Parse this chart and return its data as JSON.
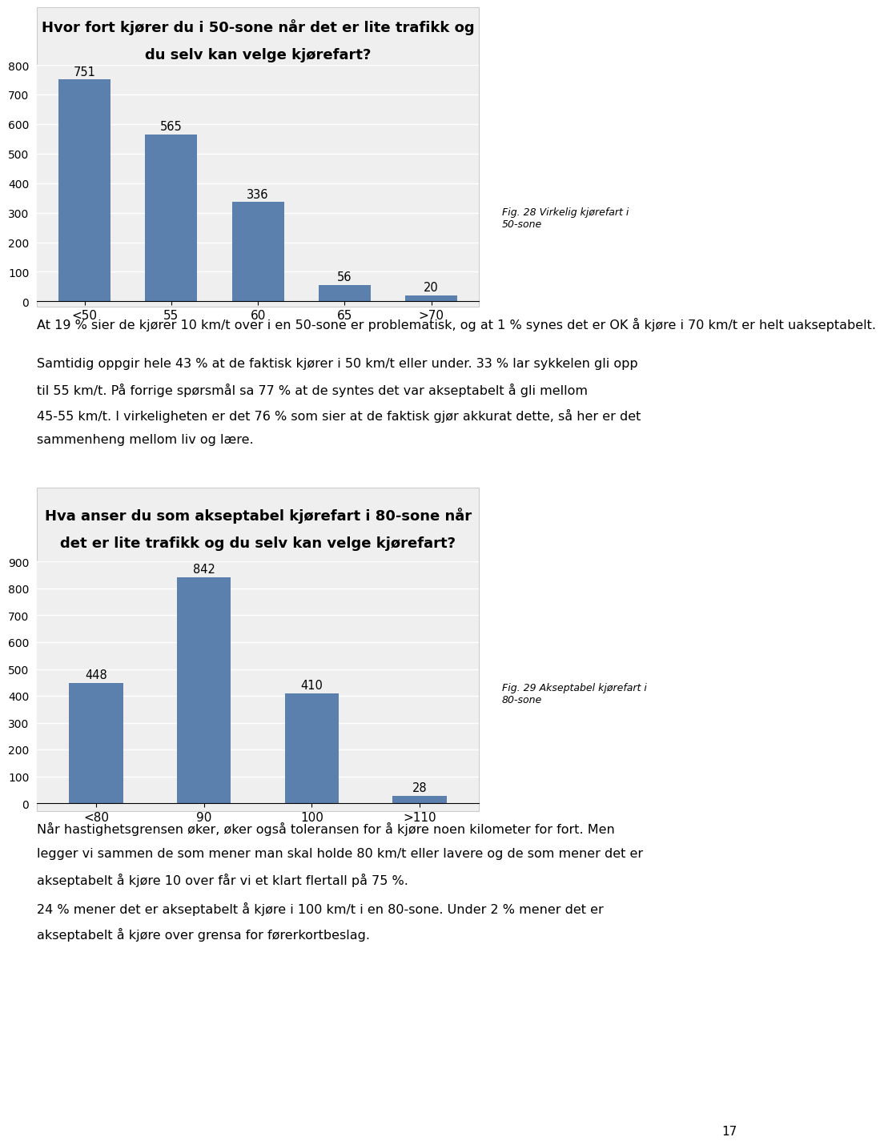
{
  "chart1": {
    "title_line1": "Hvor fort kjører du i 50-sone når det er lite trafikk og",
    "title_line2": "du selv kan velge kjørefart?",
    "categories": [
      "<50",
      "55",
      "60",
      "65",
      ">70"
    ],
    "values": [
      751,
      565,
      336,
      56,
      20
    ],
    "bar_color": "#5b80ae",
    "ylim": [
      0,
      800
    ],
    "yticks": [
      0,
      100,
      200,
      300,
      400,
      500,
      600,
      700,
      800
    ],
    "fig_caption": "Fig. 28 Virkelig kjørefart i\n50-sone"
  },
  "chart2": {
    "title_line1": "Hva anser du som akseptabel kjørefart i 80-sone når",
    "title_line2": "det er lite trafikk og du selv kan velge kjørefart?",
    "categories": [
      "<80",
      "90",
      "100",
      ">110"
    ],
    "values": [
      448,
      842,
      410,
      28
    ],
    "bar_color": "#5b80ae",
    "ylim": [
      0,
      900
    ],
    "yticks": [
      0,
      100,
      200,
      300,
      400,
      500,
      600,
      700,
      800,
      900
    ],
    "fig_caption": "Fig. 29 Akseptabel kjørefart i\n80-sone"
  },
  "text1": "At 19 % sier de kjører 10 km/t over i en 50-sone er problematisk, og at 1 % synes det er OK å kjøre i 70 km/t er helt uakseptabelt.",
  "text2_line1": "Samtidig oppgir hele 43 % at de faktisk kjører i 50 km/t eller under. 33 % lar sykkelen gli opp",
  "text2_line2": "til 55 km/t. På forrige spørsmål sa 77 % at de syntes det var akseptabelt å gli mellom",
  "text2_line3": "45-55 km/t. I virkeligheten er det 76 % som sier at de faktisk gjør akkurat dette, så her er det",
  "text2_line4": "sammenheng mellom liv og lære.",
  "text3_line1": "Når hastighetsgrensen øker, øker også toleransen for å kjøre noen kilometer for fort. Men",
  "text3_line2": "legger vi sammen de som mener man skal holde 80 km/t eller lavere og de som mener det er",
  "text3_line3": "akseptabelt å kjøre 10 over får vi et klart flertall på 75 %.",
  "text4_line1": "24 % mener det er akseptabelt å kjøre i 100 km/t i en 80-sone. Under 2 % mener det er",
  "text4_line2": "akseptabelt å kjøre over grensa for førerkortbeslag.",
  "page_number": "17",
  "background_color": "#ffffff",
  "chart_bg_color": "#efefef"
}
